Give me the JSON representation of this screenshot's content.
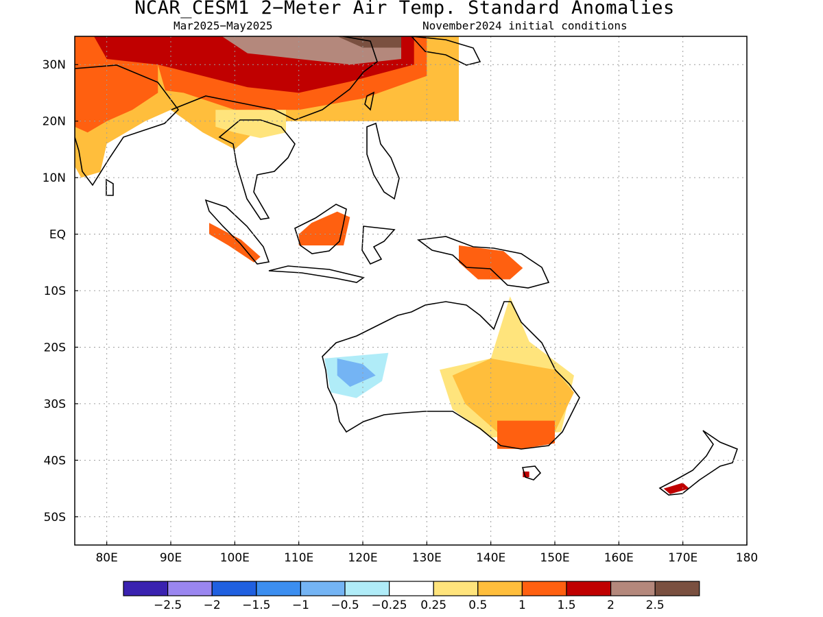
{
  "title": "NCAR_CESM1 2−Meter Air Temp. Standard Anomalies",
  "subtitle_left": "Mar2025−May2025",
  "subtitle_right": "November2024 initial conditions",
  "map": {
    "region": "Indian Ocean / Maritime Continent / Australia / New Zealand",
    "lon_range": [
      75,
      180
    ],
    "lat_range": [
      -55,
      35
    ],
    "grid_lines": "dotted",
    "lat_ticks": [
      {
        "value": 30,
        "label": "30N"
      },
      {
        "value": 20,
        "label": "20N"
      },
      {
        "value": 10,
        "label": "10N"
      },
      {
        "value": 0,
        "label": "EQ"
      },
      {
        "value": -10,
        "label": "10S"
      },
      {
        "value": -20,
        "label": "20S"
      },
      {
        "value": -30,
        "label": "30S"
      },
      {
        "value": -40,
        "label": "40S"
      },
      {
        "value": -50,
        "label": "50S"
      }
    ],
    "lon_ticks": [
      {
        "value": 80,
        "label": "80E"
      },
      {
        "value": 90,
        "label": "90E"
      },
      {
        "value": 100,
        "label": "100E"
      },
      {
        "value": 110,
        "label": "110E"
      },
      {
        "value": 120,
        "label": "120E"
      },
      {
        "value": 130,
        "label": "130E"
      },
      {
        "value": 140,
        "label": "140E"
      },
      {
        "value": 150,
        "label": "150E"
      },
      {
        "value": 160,
        "label": "160E"
      },
      {
        "value": 170,
        "label": "170E"
      },
      {
        "value": 180,
        "label": "180"
      }
    ]
  },
  "colorbar": {
    "colors": [
      "#3a22b0",
      "#9a86f0",
      "#2060e0",
      "#3c8ef0",
      "#74b4f4",
      "#b0ecf8",
      "#ffffff",
      "#ffe47c",
      "#ffbe3c",
      "#ff6010",
      "#c00000",
      "#b4887c",
      "#7a5040"
    ],
    "labels": [
      "−2.5",
      "−2",
      "−1.5",
      "−1",
      "−0.5",
      "−0.25",
      "0.25",
      "0.5",
      "1",
      "1.5",
      "2",
      "2.5"
    ]
  },
  "regions": [
    {
      "name": "china-warm",
      "color": "#ffbe3c",
      "poly": [
        [
          75,
          35
        ],
        [
          135,
          35
        ],
        [
          135,
          20
        ],
        [
          105,
          20
        ],
        [
          100,
          15
        ],
        [
          95,
          18
        ],
        [
          90,
          22
        ],
        [
          85,
          25
        ],
        [
          75,
          25
        ]
      ]
    },
    {
      "name": "china-anomaly-1_5",
      "color": "#ff6010",
      "poly": [
        [
          75,
          35
        ],
        [
          130,
          35
        ],
        [
          130,
          28
        ],
        [
          120,
          24
        ],
        [
          110,
          22
        ],
        [
          100,
          22
        ],
        [
          92,
          25
        ],
        [
          85,
          26
        ],
        [
          75,
          28
        ]
      ]
    },
    {
      "name": "china-anomaly-2",
      "color": "#c00000",
      "poly": [
        [
          78,
          35
        ],
        [
          128,
          35
        ],
        [
          128,
          30
        ],
        [
          118,
          27
        ],
        [
          110,
          25
        ],
        [
          102,
          26
        ],
        [
          95,
          28
        ],
        [
          88,
          30
        ],
        [
          80,
          31
        ]
      ]
    },
    {
      "name": "china-anomaly-2_5",
      "color": "#b4887c",
      "poly": [
        [
          98,
          35
        ],
        [
          126,
          35
        ],
        [
          126,
          31
        ],
        [
          118,
          30
        ],
        [
          110,
          31
        ],
        [
          102,
          32
        ]
      ]
    },
    {
      "name": "mongolia-anomaly-high",
      "color": "#7a5040",
      "poly": [
        [
          116,
          35
        ],
        [
          126,
          35
        ],
        [
          126,
          33
        ],
        [
          120,
          33
        ]
      ]
    },
    {
      "name": "india-warm",
      "color": "#ffbe3c",
      "poly": [
        [
          75,
          30
        ],
        [
          88,
          30
        ],
        [
          90,
          22
        ],
        [
          86,
          20
        ],
        [
          80,
          16
        ],
        [
          79,
          11
        ],
        [
          76,
          10
        ],
        [
          75,
          12
        ]
      ]
    },
    {
      "name": "india-anomaly-1_5",
      "color": "#ff6010",
      "poly": [
        [
          75,
          30
        ],
        [
          88,
          30
        ],
        [
          88,
          25
        ],
        [
          84,
          22
        ],
        [
          80,
          20
        ],
        [
          77,
          18
        ],
        [
          75,
          19
        ]
      ]
    },
    {
      "name": "indochina-warm",
      "color": "#ffe47c",
      "poly": [
        [
          97,
          22
        ],
        [
          108,
          22
        ],
        [
          108,
          18
        ],
        [
          104,
          17
        ],
        [
          100,
          18
        ],
        [
          97,
          19
        ]
      ]
    },
    {
      "name": "sumatra-anomaly",
      "color": "#ff6010",
      "poly": [
        [
          96,
          2
        ],
        [
          101,
          -1
        ],
        [
          104,
          -4
        ],
        [
          103,
          -5
        ],
        [
          99,
          -2
        ],
        [
          96,
          0
        ]
      ]
    },
    {
      "name": "borneo-anomaly",
      "color": "#ff6010",
      "poly": [
        [
          110,
          -2
        ],
        [
          117,
          -2
        ],
        [
          118,
          3
        ],
        [
          116,
          4
        ],
        [
          112,
          2
        ],
        [
          110,
          0
        ]
      ]
    },
    {
      "name": "png-anomaly",
      "color": "#ff6010",
      "poly": [
        [
          135,
          -2
        ],
        [
          142,
          -3
        ],
        [
          145,
          -6
        ],
        [
          143,
          -8
        ],
        [
          138,
          -8
        ],
        [
          135,
          -5
        ]
      ]
    },
    {
      "name": "australia-land",
      "color": "#ffffff",
      "poly": [
        [
          114,
          -22
        ],
        [
          122,
          -18
        ],
        [
          129,
          -14
        ],
        [
          136,
          -12
        ],
        [
          142,
          -11
        ],
        [
          146,
          -19
        ],
        [
          153,
          -25
        ],
        [
          150,
          -37
        ],
        [
          145,
          -38
        ],
        [
          140,
          -37
        ],
        [
          132,
          -32
        ],
        [
          122,
          -33
        ],
        [
          115,
          -34
        ],
        [
          114,
          -27
        ]
      ]
    },
    {
      "name": "australia-east-warm",
      "color": "#ffe47c",
      "poly": [
        [
          143,
          -11
        ],
        [
          146,
          -19
        ],
        [
          153,
          -25
        ],
        [
          151,
          -35
        ],
        [
          140,
          -36
        ],
        [
          134,
          -31
        ],
        [
          132,
          -24
        ],
        [
          140,
          -22
        ]
      ]
    },
    {
      "name": "australia-east-anomaly-1",
      "color": "#ffbe3c",
      "poly": [
        [
          140,
          -22
        ],
        [
          150,
          -24
        ],
        [
          153,
          -28
        ],
        [
          150,
          -35
        ],
        [
          141,
          -35
        ],
        [
          136,
          -30
        ],
        [
          134,
          -25
        ]
      ]
    },
    {
      "name": "australia-se-anomaly-1_5",
      "color": "#ff6010",
      "poly": [
        [
          141,
          -33
        ],
        [
          150,
          -33
        ],
        [
          150,
          -37
        ],
        [
          145,
          -38
        ],
        [
          141,
          -38
        ]
      ]
    },
    {
      "name": "australia-west-cool",
      "color": "#b0ecf8",
      "poly": [
        [
          114,
          -22
        ],
        [
          124,
          -21
        ],
        [
          123,
          -26
        ],
        [
          119,
          -29
        ],
        [
          115,
          -28
        ]
      ]
    },
    {
      "name": "australia-west-anomaly-0_5",
      "color": "#74b4f4",
      "poly": [
        [
          116,
          -22
        ],
        [
          120,
          -23
        ],
        [
          122,
          -25
        ],
        [
          118,
          -27
        ],
        [
          116,
          -25
        ]
      ]
    },
    {
      "name": "new-zealand-south",
      "color": "#c00000",
      "poly": [
        [
          167,
          -45
        ],
        [
          170,
          -44
        ],
        [
          171,
          -45
        ],
        [
          168,
          -46
        ]
      ]
    },
    {
      "name": "tasmania",
      "color": "#c00000",
      "poly": [
        [
          145,
          -42
        ],
        [
          146,
          -42
        ],
        [
          146,
          -43
        ],
        [
          145,
          -43
        ]
      ]
    }
  ]
}
